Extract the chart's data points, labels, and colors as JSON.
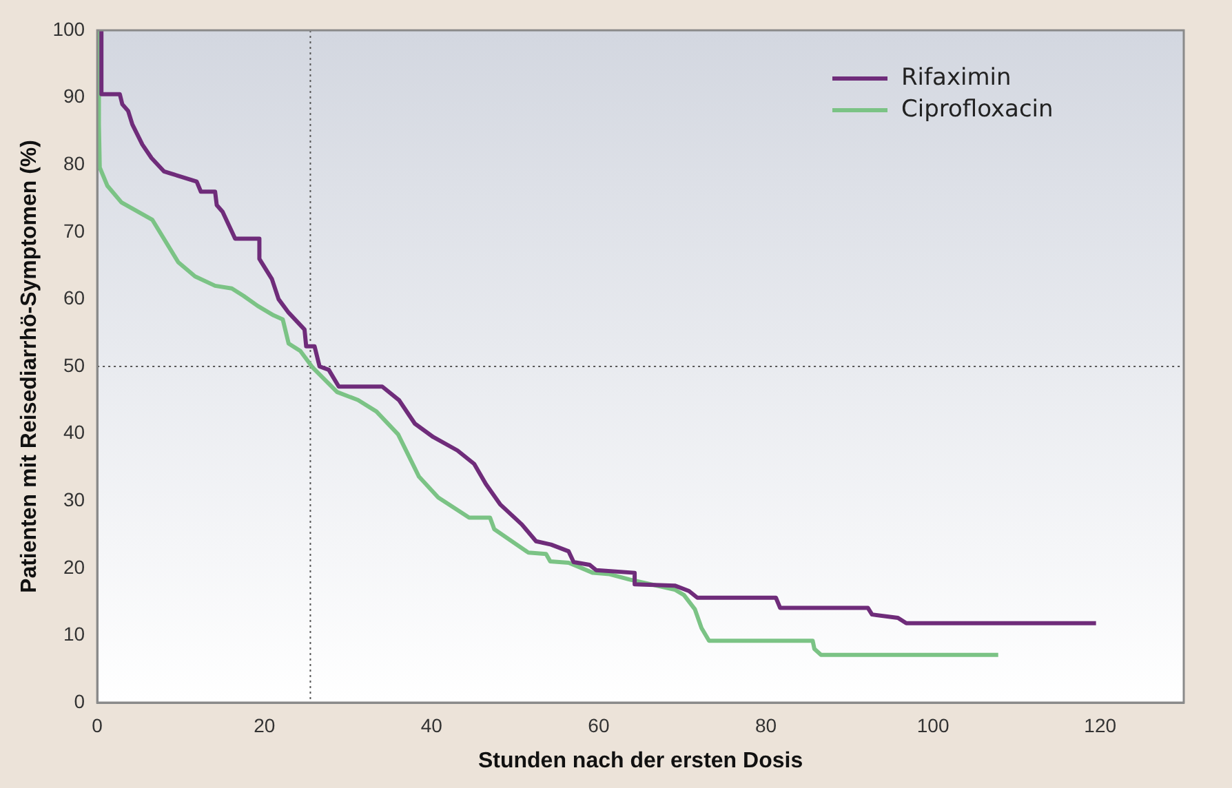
{
  "chart_data": {
    "type": "line",
    "xlabel": "Stunden nach der ersten Dosis",
    "ylabel": "Patienten mit Reisediarrhö-Symptomen (%)",
    "xlim": [
      0,
      130
    ],
    "xticks": [
      0,
      20,
      40,
      60,
      80,
      100,
      120
    ],
    "ylim": [
      0,
      100
    ],
    "yticks": [
      0,
      10,
      20,
      30,
      40,
      50,
      60,
      70,
      80,
      90,
      100
    ],
    "grid": false,
    "legend": "top right",
    "marker": "none",
    "line_style": "solid",
    "ref_lines": [
      {
        "axis": "x",
        "value": 25.5,
        "line_style": "dotted",
        "color": "#555555"
      },
      {
        "axis": "y",
        "value": 50,
        "line_style": "dotted",
        "color": "#555555"
      }
    ],
    "series": [
      {
        "name": "Rifaximin",
        "color": "#6f2c7a",
        "x": [
          0.5,
          0.5,
          2.7,
          3,
          3.7,
          4.2,
          5.4,
          6.5,
          8,
          11.9,
          12.4,
          14.1,
          14.3,
          15,
          16.5,
          19.4,
          19.4,
          20.9,
          21.7,
          22.9,
          24.8,
          25,
          26,
          26.6,
          27.7,
          28.9,
          34.1,
          36.1,
          38,
          40.2,
          43.1,
          45.1,
          46.5,
          48.2,
          50.8,
          52.5,
          54.3,
          56.4,
          57,
          58.9,
          59.7,
          64.3,
          64.3,
          69.1,
          70.8,
          71.8,
          81.2,
          81.7,
          92.2,
          92.7,
          95.8,
          96.8,
          119.5
        ],
        "values": [
          100,
          90.5,
          90.5,
          89,
          88,
          86,
          83,
          81,
          79,
          77.5,
          76,
          76,
          74,
          73,
          69,
          69,
          66,
          63,
          60,
          58,
          55.5,
          53,
          53,
          50,
          49.5,
          47,
          47,
          45,
          41.5,
          39.5,
          37.5,
          35.5,
          32.5,
          29.5,
          26.5,
          24,
          23.5,
          22.5,
          20.9,
          20.5,
          19.7,
          19.3,
          17.6,
          17.4,
          16.6,
          15.6,
          15.6,
          14.1,
          14.1,
          13.1,
          12.6,
          11.8,
          11.8
        ]
      },
      {
        "name": "Ciprofloxacin",
        "color": "#7bc385",
        "x": [
          0.2,
          0.2,
          0.3,
          1.2,
          2.9,
          6.6,
          9.7,
          11.7,
          14.1,
          16.1,
          17.5,
          19.2,
          21.1,
          22.2,
          22.9,
          24.3,
          25.8,
          28.7,
          31.2,
          33.4,
          36,
          38.5,
          40.8,
          44.5,
          47,
          47.5,
          51.6,
          53.7,
          54.2,
          56.4,
          57.2,
          59.3,
          61.3,
          63.7,
          69.1,
          70.2,
          71.5,
          72.3,
          73.2,
          85.6,
          85.8,
          86.6,
          107.8
        ],
        "values": [
          100,
          86,
          79.6,
          76.9,
          74.4,
          71.8,
          65.5,
          63.4,
          62,
          61.6,
          60.5,
          59,
          57.6,
          57,
          53.4,
          52.3,
          49.8,
          46.2,
          45,
          43.3,
          39.9,
          33.6,
          30.5,
          27.5,
          27.5,
          25.8,
          22.3,
          22.1,
          21,
          20.8,
          20.4,
          19.3,
          19.1,
          18.3,
          16.8,
          16,
          13.9,
          11.1,
          9.2,
          9.2,
          8,
          7.1,
          7.1
        ]
      }
    ]
  }
}
